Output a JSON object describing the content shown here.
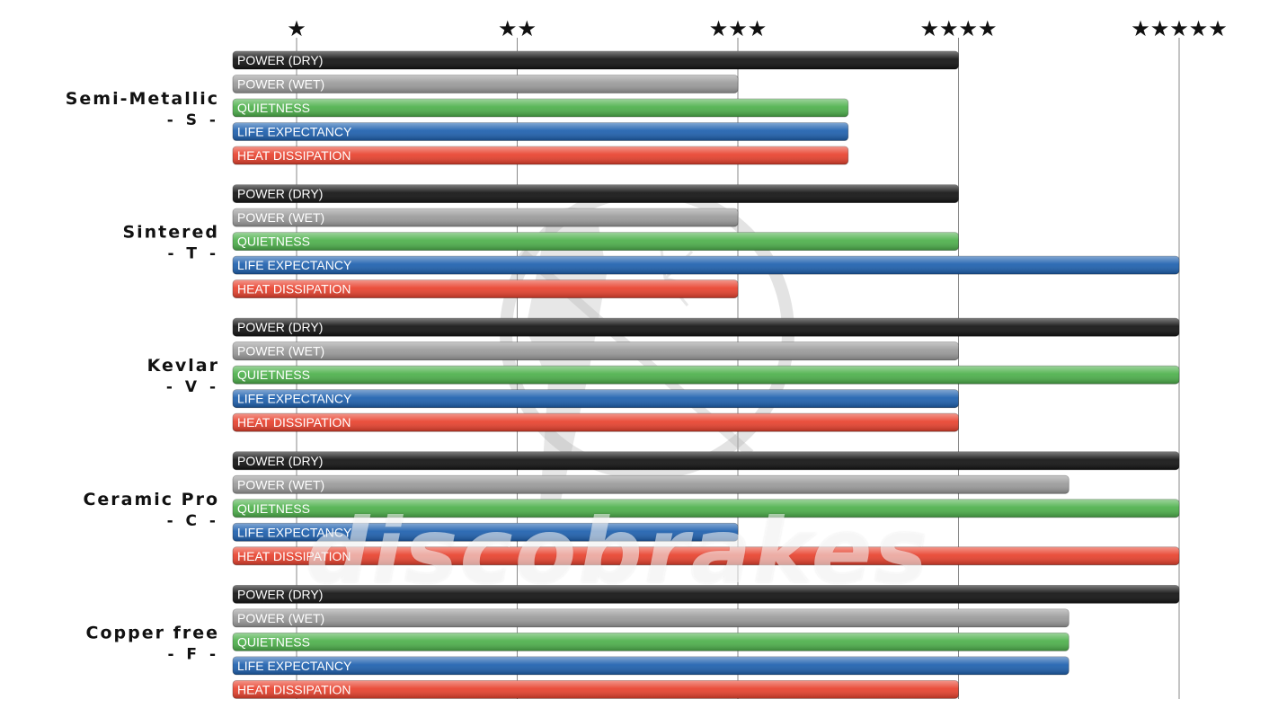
{
  "chart_data": {
    "type": "bar",
    "orientation": "horizontal",
    "x_ticks": [
      "★",
      "★★",
      "★★★",
      "★★★★",
      "★★★★★"
    ],
    "xlim": [
      1,
      5
    ],
    "grid": true,
    "metrics": [
      "POWER (DRY)",
      "POWER (WET)",
      "QUIETNESS",
      "LIFE EXPECTANCY",
      "HEAT DISSIPATION"
    ],
    "metric_colors": [
      "#111111",
      "#9a9a9a",
      "#4cb04a",
      "#1c5fae",
      "#e8402c"
    ],
    "groups": [
      {
        "name": "Semi-Metallic",
        "code": "- S -",
        "values": [
          4,
          3,
          3.5,
          3.5,
          3.5
        ]
      },
      {
        "name": "Sintered",
        "code": "- T -",
        "values": [
          4,
          3,
          4,
          5,
          3
        ]
      },
      {
        "name": "Kevlar",
        "code": "- V -",
        "values": [
          5,
          4,
          5,
          4,
          4
        ]
      },
      {
        "name": "Ceramic Pro",
        "code": "- C -",
        "values": [
          5,
          4.5,
          5,
          3,
          5
        ]
      },
      {
        "name": "Copper free",
        "code": "- F -",
        "values": [
          5,
          4.5,
          4.5,
          4.5,
          4
        ]
      }
    ]
  },
  "watermark": {
    "text": "discobrakes"
  }
}
